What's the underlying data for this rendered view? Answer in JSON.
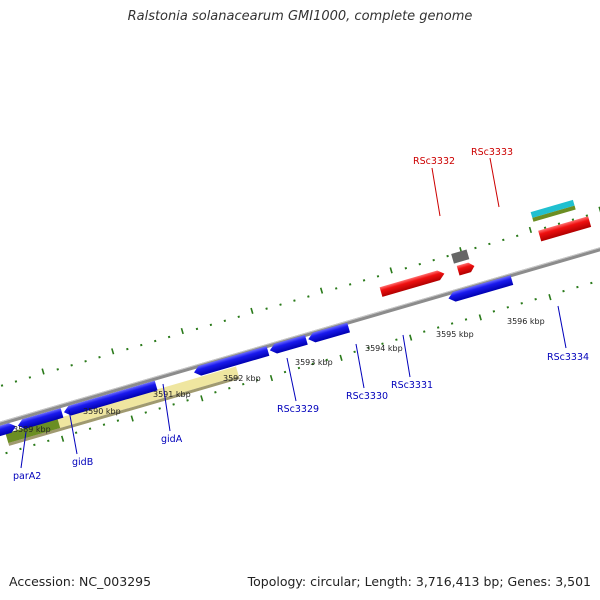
{
  "title": "Ralstonia solanacearum GMI1000, complete genome",
  "footer": {
    "accession": "Accession: NC_003295",
    "summary": "Topology: circular; Length: 3,716,413 bp; Genes: 3,501"
  },
  "ticks": [
    "3589 kbp",
    "3590 kbp",
    "3591 kbp",
    "3592 kbp",
    "3593 kbp",
    "3594 kbp",
    "3595 kbp",
    "3596 kbp"
  ],
  "genes_forward": [
    "RSc3332",
    "RSc3333"
  ],
  "genes_reverse": [
    "parA2",
    "gidB",
    "gidA",
    "RSc3329",
    "RSc3330",
    "RSc3331",
    "RSc3334"
  ],
  "colors": {
    "reverse_gene": "#1010e0",
    "forward_gene": "#ee1010",
    "forward_label": "#cc0000",
    "reverse_label": "#0000bb",
    "tick_mark": "#2a7a1a",
    "backbone": "#8c8c8c",
    "rrna": "#efe6a0",
    "olive": "#6b8e23",
    "gray_feature": "#666666",
    "cyan_feature": "#20c0d0"
  }
}
